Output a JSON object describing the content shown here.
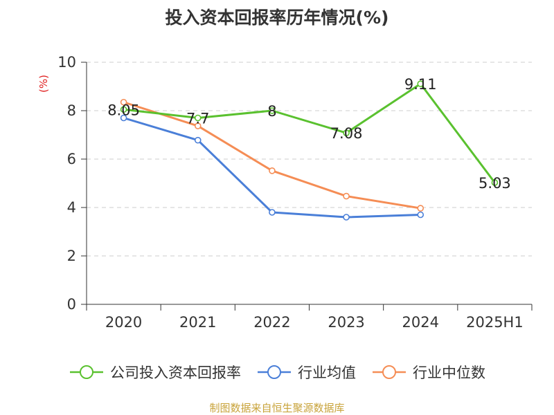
{
  "title": "投入资本回报率历年情况(%)",
  "footer": "制图数据来自恒生聚源数据库",
  "chart_data": {
    "type": "line",
    "title": "投入资本回报率历年情况(%)",
    "ylabel": "(%)",
    "xlabel": "",
    "categories": [
      "2020",
      "2021",
      "2022",
      "2023",
      "2024",
      "2025H1"
    ],
    "ylim": [
      0,
      10
    ],
    "yticks": [
      0,
      2,
      4,
      6,
      8,
      10
    ],
    "grid": true,
    "legend_position": "bottom",
    "series": [
      {
        "name": "公司投入资本回报率",
        "color": "#5ac12f",
        "values": [
          8.05,
          7.7,
          8,
          7.08,
          9.11,
          5.03
        ],
        "labels": [
          "8.05",
          "7.7",
          "8",
          "7.08",
          "9.11",
          "5.03"
        ]
      },
      {
        "name": "行业均值",
        "color": "#4a7fd8",
        "values": [
          7.7,
          6.78,
          3.8,
          3.6,
          3.7,
          null
        ]
      },
      {
        "name": "行业中位数",
        "color": "#f58d55",
        "values": [
          8.35,
          7.37,
          5.52,
          4.47,
          3.97,
          null
        ]
      }
    ]
  }
}
